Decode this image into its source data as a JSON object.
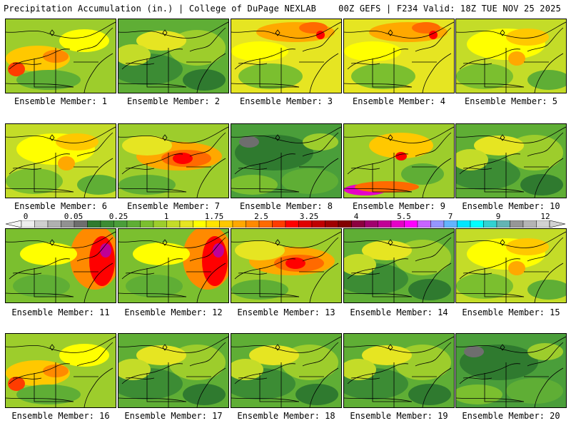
{
  "header": {
    "title": "Precipitation Accumulation (in.) | College of DuPage NEXLAB",
    "run_info": "00Z GEFS | F234 Valid: 18Z TUE NOV 25 2025"
  },
  "colorbar": {
    "labels": [
      "0",
      "0.05",
      "0.25",
      "1",
      "1.75",
      "2.5",
      "3.25",
      "4",
      "5.5",
      "7",
      "9",
      "12"
    ],
    "colors": [
      "#eeeeee",
      "#cfcfcf",
      "#b0b0b0",
      "#919191",
      "#6e6e6e",
      "#2f7a2f",
      "#3c8c34",
      "#4a9e3a",
      "#5fae35",
      "#7bbf2f",
      "#9dcd2c",
      "#c4dc28",
      "#e6e522",
      "#ffff00",
      "#ffe400",
      "#ffc800",
      "#ffa800",
      "#ff8a00",
      "#ff6a00",
      "#ff3c00",
      "#ff0000",
      "#e00000",
      "#c00000",
      "#a00000",
      "#820000",
      "#8c0040",
      "#a0006e",
      "#c00096",
      "#e600c8",
      "#ff00ff",
      "#c864ff",
      "#9696ff",
      "#64b4ff",
      "#00e6ff",
      "#00ffff",
      "#32d2d2",
      "#64b4b4",
      "#969696",
      "#b4b4b4",
      "#d2d2d2"
    ]
  },
  "members": [
    {
      "label": "Ensemble Member: 1",
      "tone": "orange-west"
    },
    {
      "label": "Ensemble Member: 2",
      "tone": "green"
    },
    {
      "label": "Ensemble Member: 3",
      "tone": "orange-north"
    },
    {
      "label": "Ensemble Member: 4",
      "tone": "orange-north"
    },
    {
      "label": "Ensemble Member: 5",
      "tone": "yellow"
    },
    {
      "label": "Ensemble Member: 6",
      "tone": "yellow"
    },
    {
      "label": "Ensemble Member: 7",
      "tone": "red-band"
    },
    {
      "label": "Ensemble Member: 8",
      "tone": "dark-green"
    },
    {
      "label": "Ensemble Member: 9",
      "tone": "magenta-south"
    },
    {
      "label": "Ensemble Member: 10",
      "tone": "green"
    },
    {
      "label": "Ensemble Member: 11",
      "tone": "red-coast"
    },
    {
      "label": "Ensemble Member: 12",
      "tone": "red-coast"
    },
    {
      "label": "Ensemble Member: 13",
      "tone": "red-band"
    },
    {
      "label": "Ensemble Member: 14",
      "tone": "green"
    },
    {
      "label": "Ensemble Member: 15",
      "tone": "yellow"
    },
    {
      "label": "Ensemble Member: 16",
      "tone": "orange-west"
    },
    {
      "label": "Ensemble Member: 17",
      "tone": "green"
    },
    {
      "label": "Ensemble Member: 18",
      "tone": "green"
    },
    {
      "label": "Ensemble Member: 19",
      "tone": "green"
    },
    {
      "label": "Ensemble Member: 20",
      "tone": "dark-green"
    }
  ]
}
